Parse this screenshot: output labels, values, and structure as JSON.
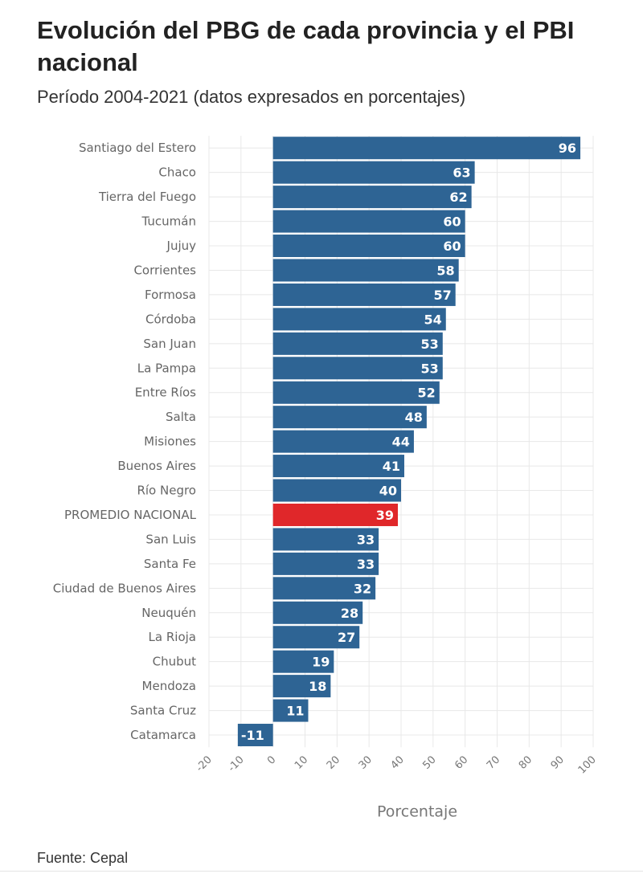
{
  "header": {
    "title": "Evolución del PBG de cada provincia y el PBI nacional",
    "subtitle": "Período 2004-2021 (datos expresados en porcentajes)"
  },
  "footer": {
    "source": "Fuente: Cepal"
  },
  "colors": {
    "bar": "#2e6494",
    "highlight": "#e0272a",
    "grid": "#e8e8e8"
  },
  "chart_data": {
    "type": "bar",
    "orientation": "horizontal",
    "title": "Evolución del PBG de cada provincia y el PBI nacional",
    "subtitle": "Período 2004-2021 (datos expresados en porcentajes)",
    "xlabel": "Porcentaje",
    "ylabel": "",
    "xlim": [
      -20,
      100
    ],
    "xticks": [
      "-20",
      "-10",
      "0",
      "10",
      "20",
      "30",
      "40",
      "50",
      "60",
      "70",
      "80",
      "90",
      "100"
    ],
    "grid": true,
    "highlight_category": "PROMEDIO NACIONAL",
    "categories": [
      "Santiago del Estero",
      "Chaco",
      "Tierra del Fuego",
      "Tucumán",
      "Jujuy",
      "Corrientes",
      "Formosa",
      "Córdoba",
      "San Juan",
      "La Pampa",
      "Entre Ríos",
      "Salta",
      "Misiones",
      "Buenos Aires",
      "Río Negro",
      "PROMEDIO NACIONAL",
      "San Luis",
      "Santa Fe",
      "Ciudad de Buenos Aires",
      "Neuquén",
      "La Rioja",
      "Chubut",
      "Mendoza",
      "Santa Cruz",
      "Catamarca"
    ],
    "values": [
      96,
      63,
      62,
      60,
      60,
      58,
      57,
      54,
      53,
      53,
      52,
      48,
      44,
      41,
      40,
      39,
      33,
      33,
      32,
      28,
      27,
      19,
      18,
      11,
      -11
    ]
  }
}
